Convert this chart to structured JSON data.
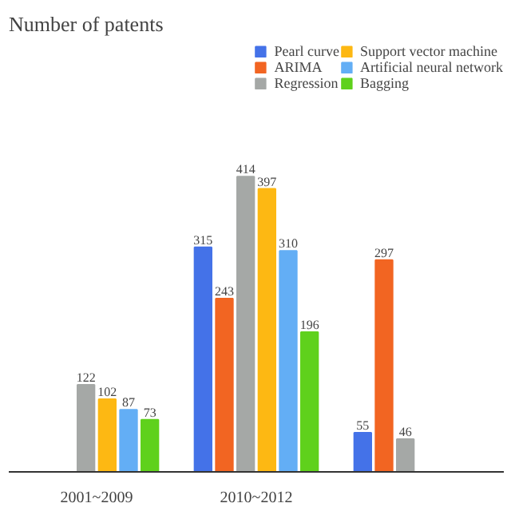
{
  "chart_data": {
    "type": "bar",
    "title": "Number of patents",
    "categories": [
      "2001~2009",
      "2010~2012",
      null
    ],
    "series": [
      {
        "name": "Pearl curve",
        "color": "#4472e8",
        "values": [
          null,
          315,
          55
        ]
      },
      {
        "name": "ARIMA",
        "color": "#f26522",
        "values": [
          null,
          243,
          297
        ]
      },
      {
        "name": "Regression",
        "color": "#a5a8a6",
        "values": [
          122,
          414,
          46
        ]
      },
      {
        "name": "Support vector machine",
        "color": "#fdb813",
        "values": [
          102,
          397,
          null
        ]
      },
      {
        "name": "Artificial neural network",
        "color": "#63aef5",
        "values": [
          87,
          310,
          null
        ]
      },
      {
        "name": "Bagging",
        "color": "#5fd11c",
        "values": [
          73,
          196,
          null
        ]
      }
    ],
    "data_labels": true,
    "legend": "top right"
  }
}
